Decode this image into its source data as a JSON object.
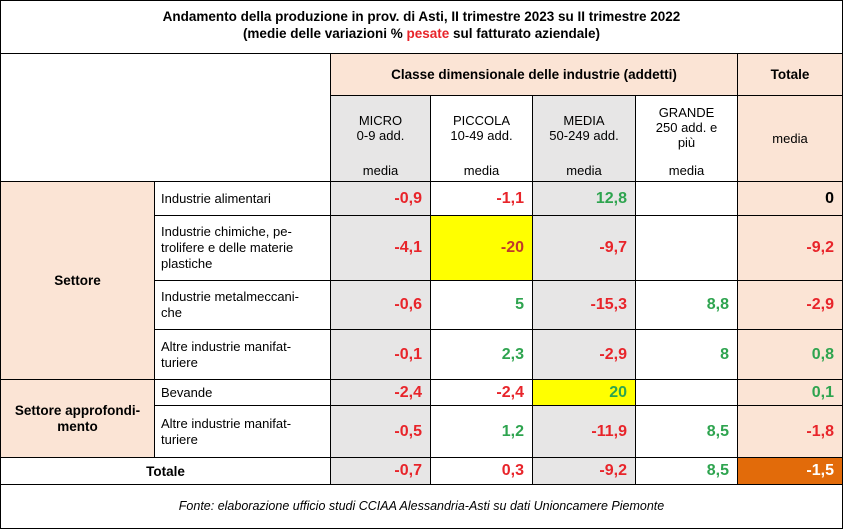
{
  "title": {
    "line1": "Andamento della produzione in prov. di Asti, II trimestre 2023 su II trimestre 2022",
    "line2_pre": "(medie delle variazioni % ",
    "line2_red": "pesate",
    "line2_post": " sul fatturato aziendale)"
  },
  "header": {
    "class_label": "Classe dimensionale delle industrie (addetti)",
    "total_label": "Totale",
    "total_sub": "media",
    "columns": [
      {
        "name": "MICRO",
        "range": "0-9 add.",
        "sub": "media"
      },
      {
        "name": "PICCOLA",
        "range": "10-49 add.",
        "sub": "media"
      },
      {
        "name": "MEDIA",
        "range": "50-249 add.",
        "sub": "media"
      },
      {
        "name": "GRANDE",
        "range1": "250 add. e",
        "range2": "più",
        "sub": "media"
      }
    ]
  },
  "groups": {
    "settore": "Settore",
    "approfondimento_1": "Settore approfondi-",
    "approfondimento_2": "mento"
  },
  "rows": [
    {
      "label": [
        "Industrie alimentari"
      ],
      "micro": "-0,9",
      "piccola": "-1,1",
      "media": "12,8",
      "grande": "",
      "totale": "0"
    },
    {
      "label": [
        "Industrie chimiche, pe-",
        "trolifere e delle materie",
        "plastiche"
      ],
      "micro": "-4,1",
      "piccola": "-20",
      "media": "-9,7",
      "grande": "",
      "totale": "-9,2"
    },
    {
      "label": [
        "Industrie metalmeccani-",
        "che"
      ],
      "micro": "-0,6",
      "piccola": "5",
      "media": "-15,3",
      "grande": "8,8",
      "totale": "-2,9"
    },
    {
      "label": [
        "Altre industrie manifat-",
        "turiere"
      ],
      "micro": "-0,1",
      "piccola": "2,3",
      "media": "-2,9",
      "grande": "8",
      "totale": "0,8"
    },
    {
      "label": [
        "Bevande"
      ],
      "micro": "-2,4",
      "piccola": "-2,4",
      "media": "20",
      "grande": "",
      "totale": "0,1"
    },
    {
      "label": [
        "Altre industrie manifat-",
        "turiere"
      ],
      "micro": "-0,5",
      "piccola": "1,2",
      "media": "-11,9",
      "grande": "8,5",
      "totale": "-1,8"
    }
  ],
  "total_row": {
    "label": "Totale",
    "micro": "-0,7",
    "piccola": "0,3",
    "media": "-9,2",
    "grande": "8,5",
    "totale": "-1,5"
  },
  "source": "Fonte: elaborazione ufficio studi CCIAA Alessandria-Asti su dati Unioncamere Piemonte",
  "colors": {
    "negative": "#e8242a",
    "positive": "#2ea44f",
    "highlight": "#ffff00",
    "total_highlight": "#e26b0a",
    "header_bg": "#fbe4d5",
    "cell_bg": "#e7e6e6"
  }
}
